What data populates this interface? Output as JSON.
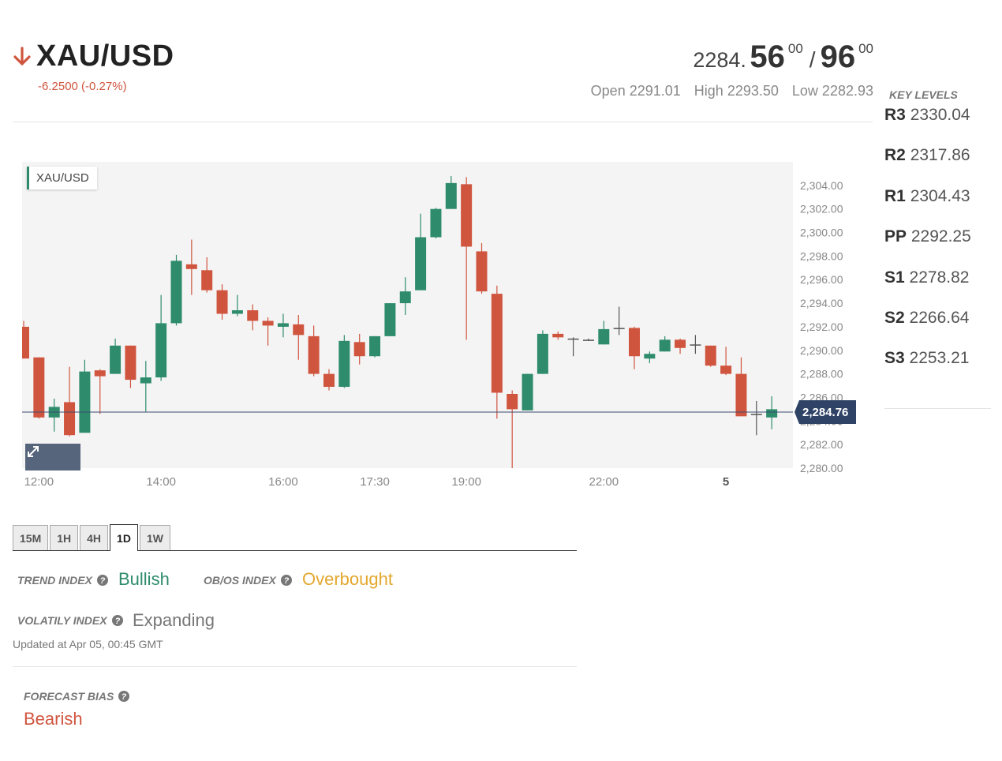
{
  "header": {
    "symbol": "XAU/USD",
    "direction_icon": "arrow-down-icon",
    "change": "-6.2500 (-0.27%)",
    "price": {
      "base": "2284.",
      "bid_main": "56",
      "bid_sup": "00",
      "separator": "/",
      "ask_main": "96",
      "ask_sup": "00"
    },
    "open": "Open 2291.01",
    "high": "High 2293.50",
    "low": "Low 2282.93"
  },
  "colors": {
    "bullish": "#2e8c6c",
    "bearish": "#d0553f",
    "neutral": "#555555",
    "overbought": "#e3a72e",
    "price_tag": "#2f4366"
  },
  "chart": {
    "label": "XAU/USD",
    "last_price_label": "2,284.76",
    "expand_icon": "expand-arrows-icon",
    "chart_data": {
      "type": "candlestick",
      "title": "XAU/USD",
      "last_price": 2284.76,
      "ylim": [
        2280,
        2306
      ],
      "yticks": [
        2280,
        2282,
        2284,
        2286,
        2288,
        2290,
        2292,
        2294,
        2296,
        2298,
        2300,
        2302,
        2304
      ],
      "ytick_labels": [
        "2,280.00",
        "2,282.00",
        "2,284.00",
        "2,286.00",
        "2,288.00",
        "2,290.00",
        "2,292.00",
        "2,294.00",
        "2,296.00",
        "2,298.00",
        "2,300.00",
        "2,302.00",
        "2,304.00"
      ],
      "xticks": [
        {
          "label": "12:00",
          "index": 1,
          "bold": false
        },
        {
          "label": "14:00",
          "index": 9,
          "bold": false
        },
        {
          "label": "16:00",
          "index": 17,
          "bold": false
        },
        {
          "label": "17:30",
          "index": 23,
          "bold": false
        },
        {
          "label": "19:00",
          "index": 29,
          "bold": false
        },
        {
          "label": "22:00",
          "index": 38,
          "bold": false
        },
        {
          "label": "5",
          "index": 46,
          "bold": true
        }
      ],
      "candles": [
        {
          "o": 2292.0,
          "h": 2292.5,
          "l": 2289.3,
          "c": 2289.3
        },
        {
          "o": 2289.4,
          "h": 2289.4,
          "l": 2284.2,
          "c": 2284.3
        },
        {
          "o": 2284.3,
          "h": 2285.9,
          "l": 2283.1,
          "c": 2285.2
        },
        {
          "o": 2285.6,
          "h": 2288.6,
          "l": 2282.7,
          "c": 2282.8
        },
        {
          "o": 2283.0,
          "h": 2289.2,
          "l": 2283.0,
          "c": 2288.2
        },
        {
          "o": 2288.3,
          "h": 2288.4,
          "l": 2284.6,
          "c": 2287.8
        },
        {
          "o": 2288.0,
          "h": 2291.0,
          "l": 2288.0,
          "c": 2290.4
        },
        {
          "o": 2290.4,
          "h": 2290.4,
          "l": 2286.8,
          "c": 2287.5
        },
        {
          "o": 2287.2,
          "h": 2289.1,
          "l": 2284.8,
          "c": 2287.7
        },
        {
          "o": 2287.7,
          "h": 2294.7,
          "l": 2287.4,
          "c": 2292.3
        },
        {
          "o": 2292.3,
          "h": 2298.1,
          "l": 2292.1,
          "c": 2297.6
        },
        {
          "o": 2297.3,
          "h": 2299.4,
          "l": 2294.7,
          "c": 2296.9
        },
        {
          "o": 2296.8,
          "h": 2297.9,
          "l": 2294.9,
          "c": 2295.1
        },
        {
          "o": 2295.1,
          "h": 2295.6,
          "l": 2292.6,
          "c": 2293.1
        },
        {
          "o": 2293.1,
          "h": 2294.7,
          "l": 2292.9,
          "c": 2293.4
        },
        {
          "o": 2293.4,
          "h": 2293.9,
          "l": 2291.7,
          "c": 2292.5
        },
        {
          "o": 2292.5,
          "h": 2292.8,
          "l": 2290.4,
          "c": 2292.1
        },
        {
          "o": 2292.0,
          "h": 2293.1,
          "l": 2291.1,
          "c": 2292.3
        },
        {
          "o": 2292.2,
          "h": 2293.0,
          "l": 2289.2,
          "c": 2291.3
        },
        {
          "o": 2291.2,
          "h": 2292.1,
          "l": 2287.8,
          "c": 2288.0
        },
        {
          "o": 2288.0,
          "h": 2288.4,
          "l": 2286.6,
          "c": 2286.9
        },
        {
          "o": 2286.9,
          "h": 2291.3,
          "l": 2286.8,
          "c": 2290.8
        },
        {
          "o": 2290.7,
          "h": 2291.4,
          "l": 2288.8,
          "c": 2289.5
        },
        {
          "o": 2289.5,
          "h": 2291.2,
          "l": 2289.4,
          "c": 2291.2
        },
        {
          "o": 2291.2,
          "h": 2294.0,
          "l": 2291.2,
          "c": 2294.0
        },
        {
          "o": 2294.0,
          "h": 2296.2,
          "l": 2293.0,
          "c": 2295.0
        },
        {
          "o": 2295.1,
          "h": 2301.6,
          "l": 2295.1,
          "c": 2299.6
        },
        {
          "o": 2299.6,
          "h": 2302.1,
          "l": 2299.5,
          "c": 2302.0
        },
        {
          "o": 2302.0,
          "h": 2304.8,
          "l": 2302.0,
          "c": 2304.2
        },
        {
          "o": 2304.1,
          "h": 2304.7,
          "l": 2290.9,
          "c": 2298.8
        },
        {
          "o": 2298.4,
          "h": 2299.1,
          "l": 2294.8,
          "c": 2295.0
        },
        {
          "o": 2294.8,
          "h": 2295.5,
          "l": 2284.2,
          "c": 2286.4
        },
        {
          "o": 2286.3,
          "h": 2286.6,
          "l": 2280.0,
          "c": 2285.0
        },
        {
          "o": 2284.9,
          "h": 2288.0,
          "l": 2284.9,
          "c": 2288.0
        },
        {
          "o": 2288.0,
          "h": 2291.7,
          "l": 2288.0,
          "c": 2291.4
        },
        {
          "o": 2291.4,
          "h": 2291.6,
          "l": 2290.9,
          "c": 2291.1
        },
        {
          "o": 2291.0,
          "h": 2291.1,
          "l": 2289.5,
          "c": 2290.9
        },
        {
          "o": 2290.9,
          "h": 2291.0,
          "l": 2290.8,
          "c": 2290.9
        },
        {
          "o": 2290.5,
          "h": 2292.5,
          "l": 2290.5,
          "c": 2291.8
        },
        {
          "o": 2291.8,
          "h": 2293.7,
          "l": 2291.3,
          "c": 2291.9
        },
        {
          "o": 2291.9,
          "h": 2292.0,
          "l": 2288.4,
          "c": 2289.5
        },
        {
          "o": 2289.3,
          "h": 2289.9,
          "l": 2288.9,
          "c": 2289.7
        },
        {
          "o": 2289.9,
          "h": 2291.2,
          "l": 2289.9,
          "c": 2290.9
        },
        {
          "o": 2290.9,
          "h": 2291.0,
          "l": 2289.7,
          "c": 2290.2
        },
        {
          "o": 2290.5,
          "h": 2291.3,
          "l": 2289.7,
          "c": 2290.5
        },
        {
          "o": 2290.4,
          "h": 2290.4,
          "l": 2288.6,
          "c": 2288.7
        },
        {
          "o": 2288.7,
          "h": 2290.3,
          "l": 2287.9,
          "c": 2288.0
        },
        {
          "o": 2288.0,
          "h": 2289.4,
          "l": 2284.4,
          "c": 2284.4
        },
        {
          "o": 2284.5,
          "h": 2285.7,
          "l": 2282.8,
          "c": 2284.6
        },
        {
          "o": 2284.3,
          "h": 2286.1,
          "l": 2283.3,
          "c": 2285.0
        }
      ]
    }
  },
  "key_levels": {
    "title": "KEY LEVELS",
    "items": [
      {
        "label": "R3",
        "value": "2330.04"
      },
      {
        "label": "R2",
        "value": "2317.86"
      },
      {
        "label": "R1",
        "value": "2304.43"
      },
      {
        "label": "PP",
        "value": "2292.25"
      },
      {
        "label": "S1",
        "value": "2278.82"
      },
      {
        "label": "S2",
        "value": "2266.64"
      },
      {
        "label": "S3",
        "value": "2253.21"
      }
    ]
  },
  "timeframes": {
    "tabs": [
      "15M",
      "1H",
      "4H",
      "1D",
      "1W"
    ],
    "active": "1D"
  },
  "indices": {
    "trend_label": "TREND INDEX",
    "trend_value": "Bullish",
    "obos_label": "OB/OS INDEX",
    "obos_value": "Overbought",
    "volatility_label": "VOLATILY INDEX",
    "volatility_value": "Expanding",
    "updated": "Updated at Apr 05, 00:45 GMT",
    "help_icon": "question-circle-icon"
  },
  "forecast": {
    "label": "FORECAST BIAS",
    "value": "Bearish"
  }
}
